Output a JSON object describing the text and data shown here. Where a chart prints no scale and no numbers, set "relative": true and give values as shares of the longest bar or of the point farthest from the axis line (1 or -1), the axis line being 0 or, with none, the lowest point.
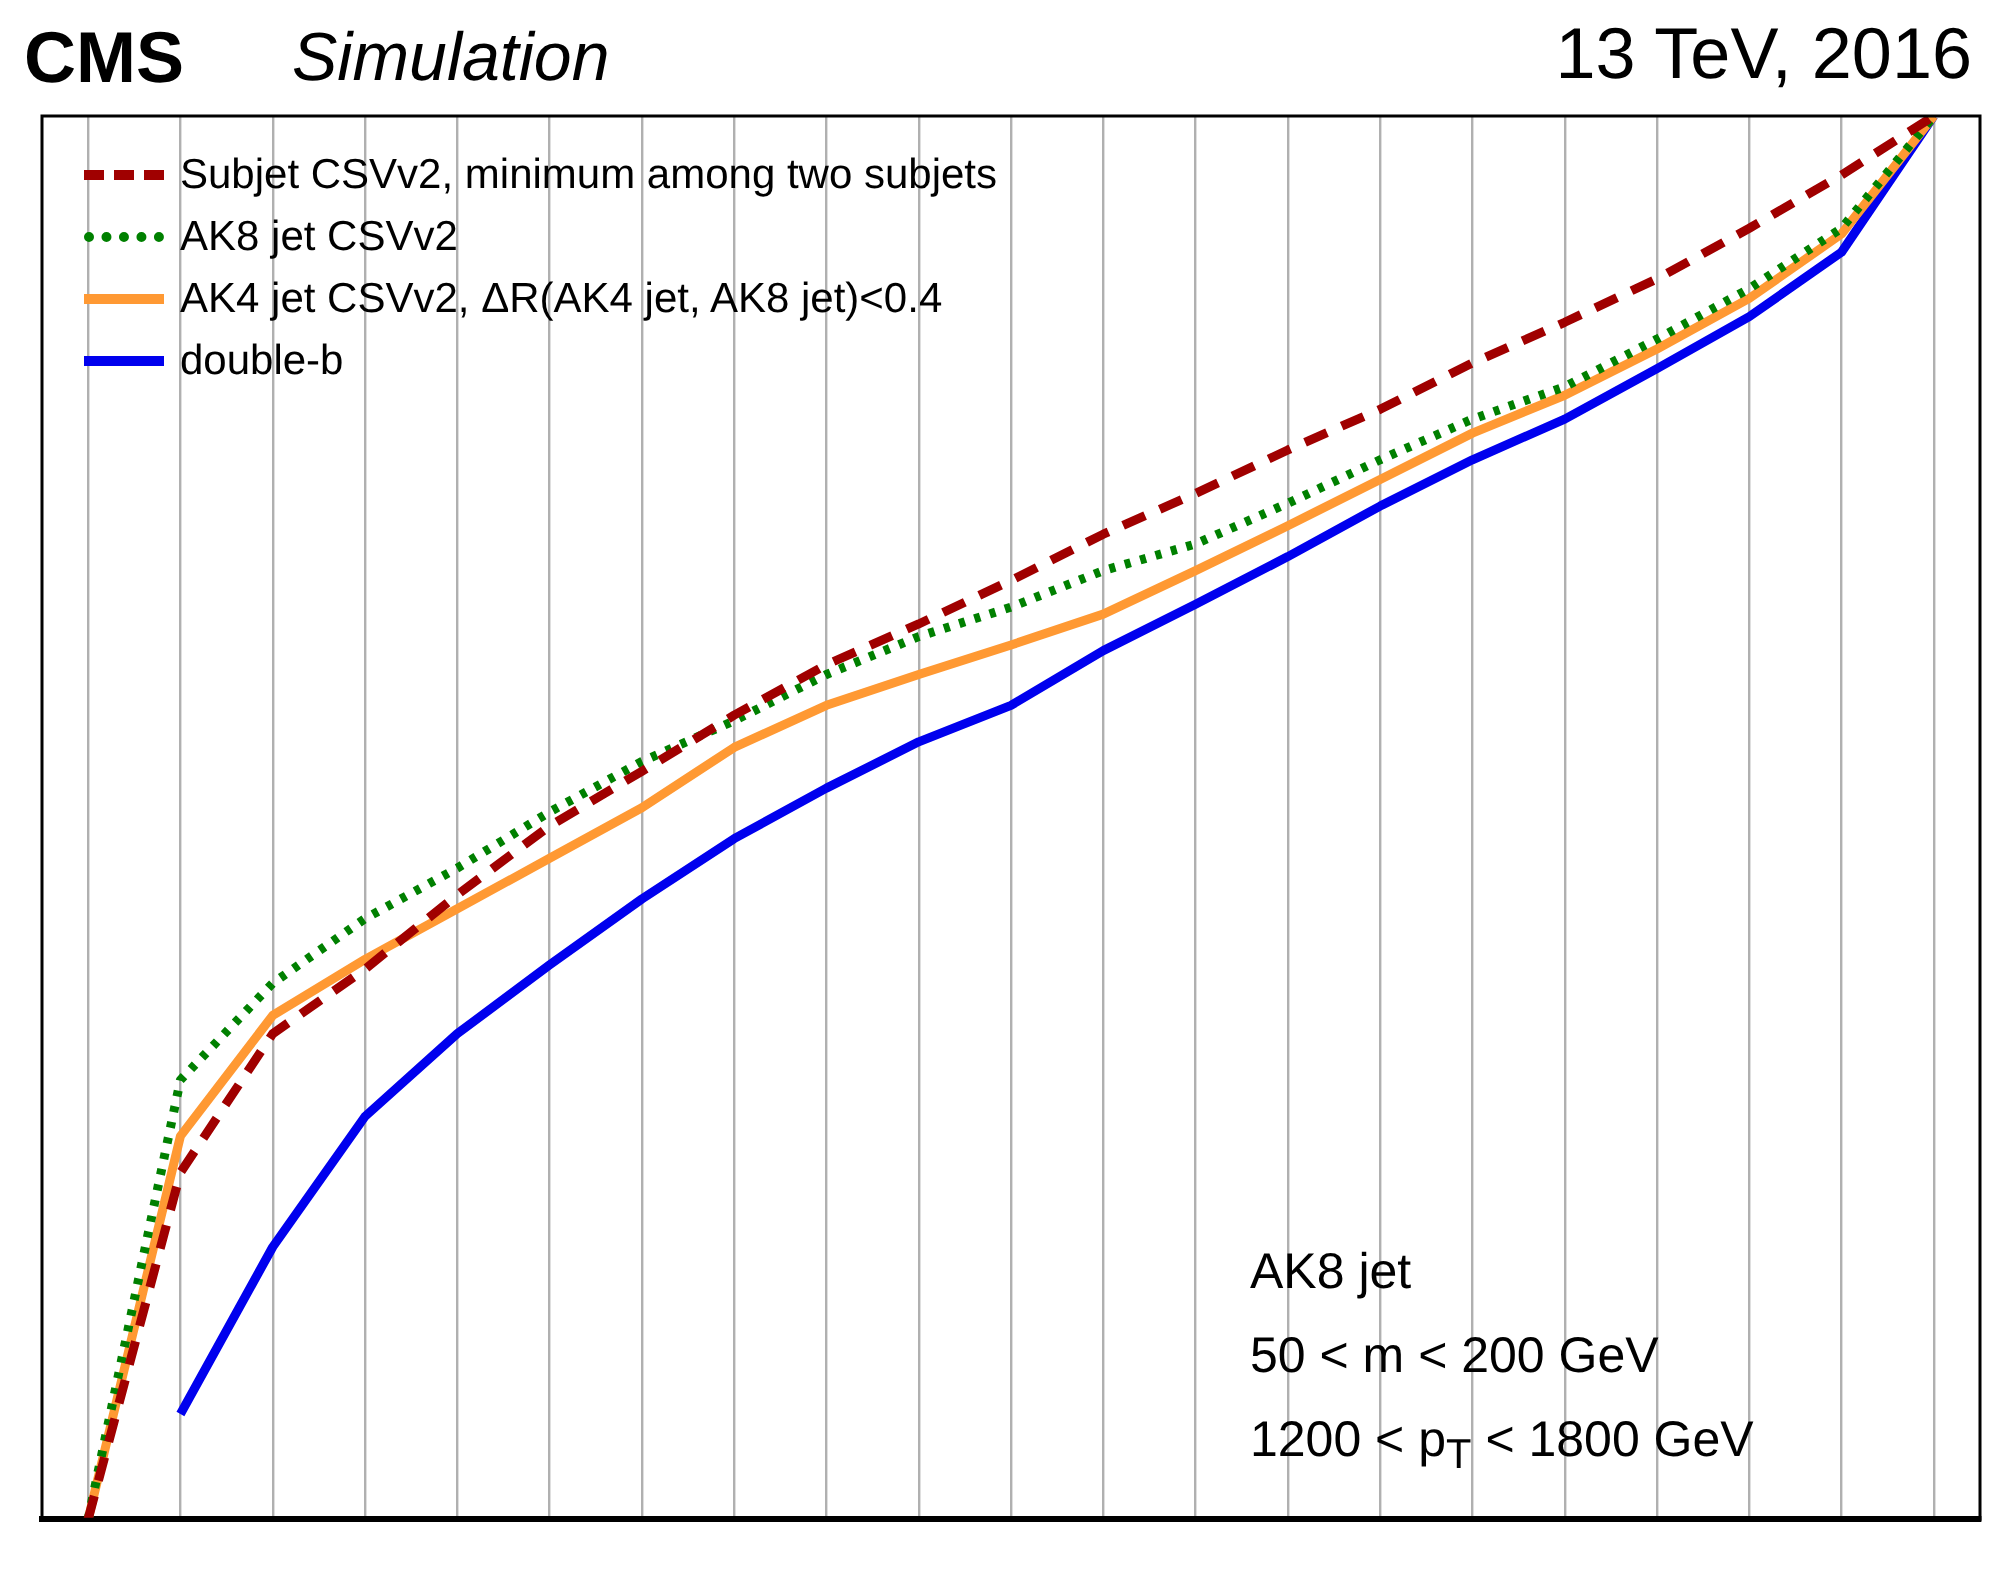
{
  "chart_data": {
    "type": "line",
    "title": "CMS",
    "subtitle": "Simulation",
    "annotations": [
      "13 TeV, 2016",
      "AK8 jet",
      "50 < m < 200 GeV",
      "1200 < p$_{T}$ < 1800 GeV"
    ],
    "categories": [
      null,
      null,
      null,
      null,
      null,
      null,
      null,
      null,
      null,
      null,
      null,
      null,
      null,
      null,
      null,
      null,
      null,
      null,
      null,
      null,
      null
    ],
    "relative": true,
    "grid": true,
    "legend": "top left",
    "marker": "none",
    "series": [
      {
        "name": "Subjet CSVv2, minimum among two subjets",
        "color": "#a00000",
        "line_style": "dashed",
        "values": [
          0,
          0.247,
          0.346,
          0.392,
          0.445,
          0.494,
          0.533,
          0.573,
          0.609,
          0.638,
          0.669,
          0.702,
          0.731,
          0.762,
          0.791,
          0.824,
          0.853,
          0.884,
          0.92,
          0.958,
          1
        ]
      },
      {
        "name": "AK8 jet CSVv2",
        "color": "#008000",
        "line_style": "dotted",
        "values": [
          0,
          0.313,
          0.382,
          0.428,
          0.464,
          0.504,
          0.54,
          0.569,
          0.602,
          0.629,
          0.65,
          0.676,
          0.695,
          0.724,
          0.755,
          0.784,
          0.807,
          0.841,
          0.877,
          0.92,
          1
        ]
      },
      {
        "name": "AK4 jet CSVv2, ΔR(AK4 jet, AK8 jet)<0.4",
        "color": "#ff9933",
        "line_style": "solid",
        "values": [
          0,
          0.273,
          0.359,
          0.399,
          0.435,
          0.471,
          0.507,
          0.55,
          0.58,
          0.602,
          0.623,
          0.645,
          0.676,
          0.708,
          0.741,
          0.774,
          0.801,
          0.834,
          0.87,
          0.916,
          1
        ]
      },
      {
        "name": "double-b",
        "color": "#0000ee",
        "line_style": "solid",
        "values": [
          null,
          0.075,
          0.194,
          0.287,
          0.346,
          0.395,
          0.442,
          0.485,
          0.521,
          0.554,
          0.58,
          0.619,
          0.652,
          0.686,
          0.722,
          0.755,
          0.784,
          0.82,
          0.857,
          0.903,
          1
        ]
      }
    ]
  }
}
